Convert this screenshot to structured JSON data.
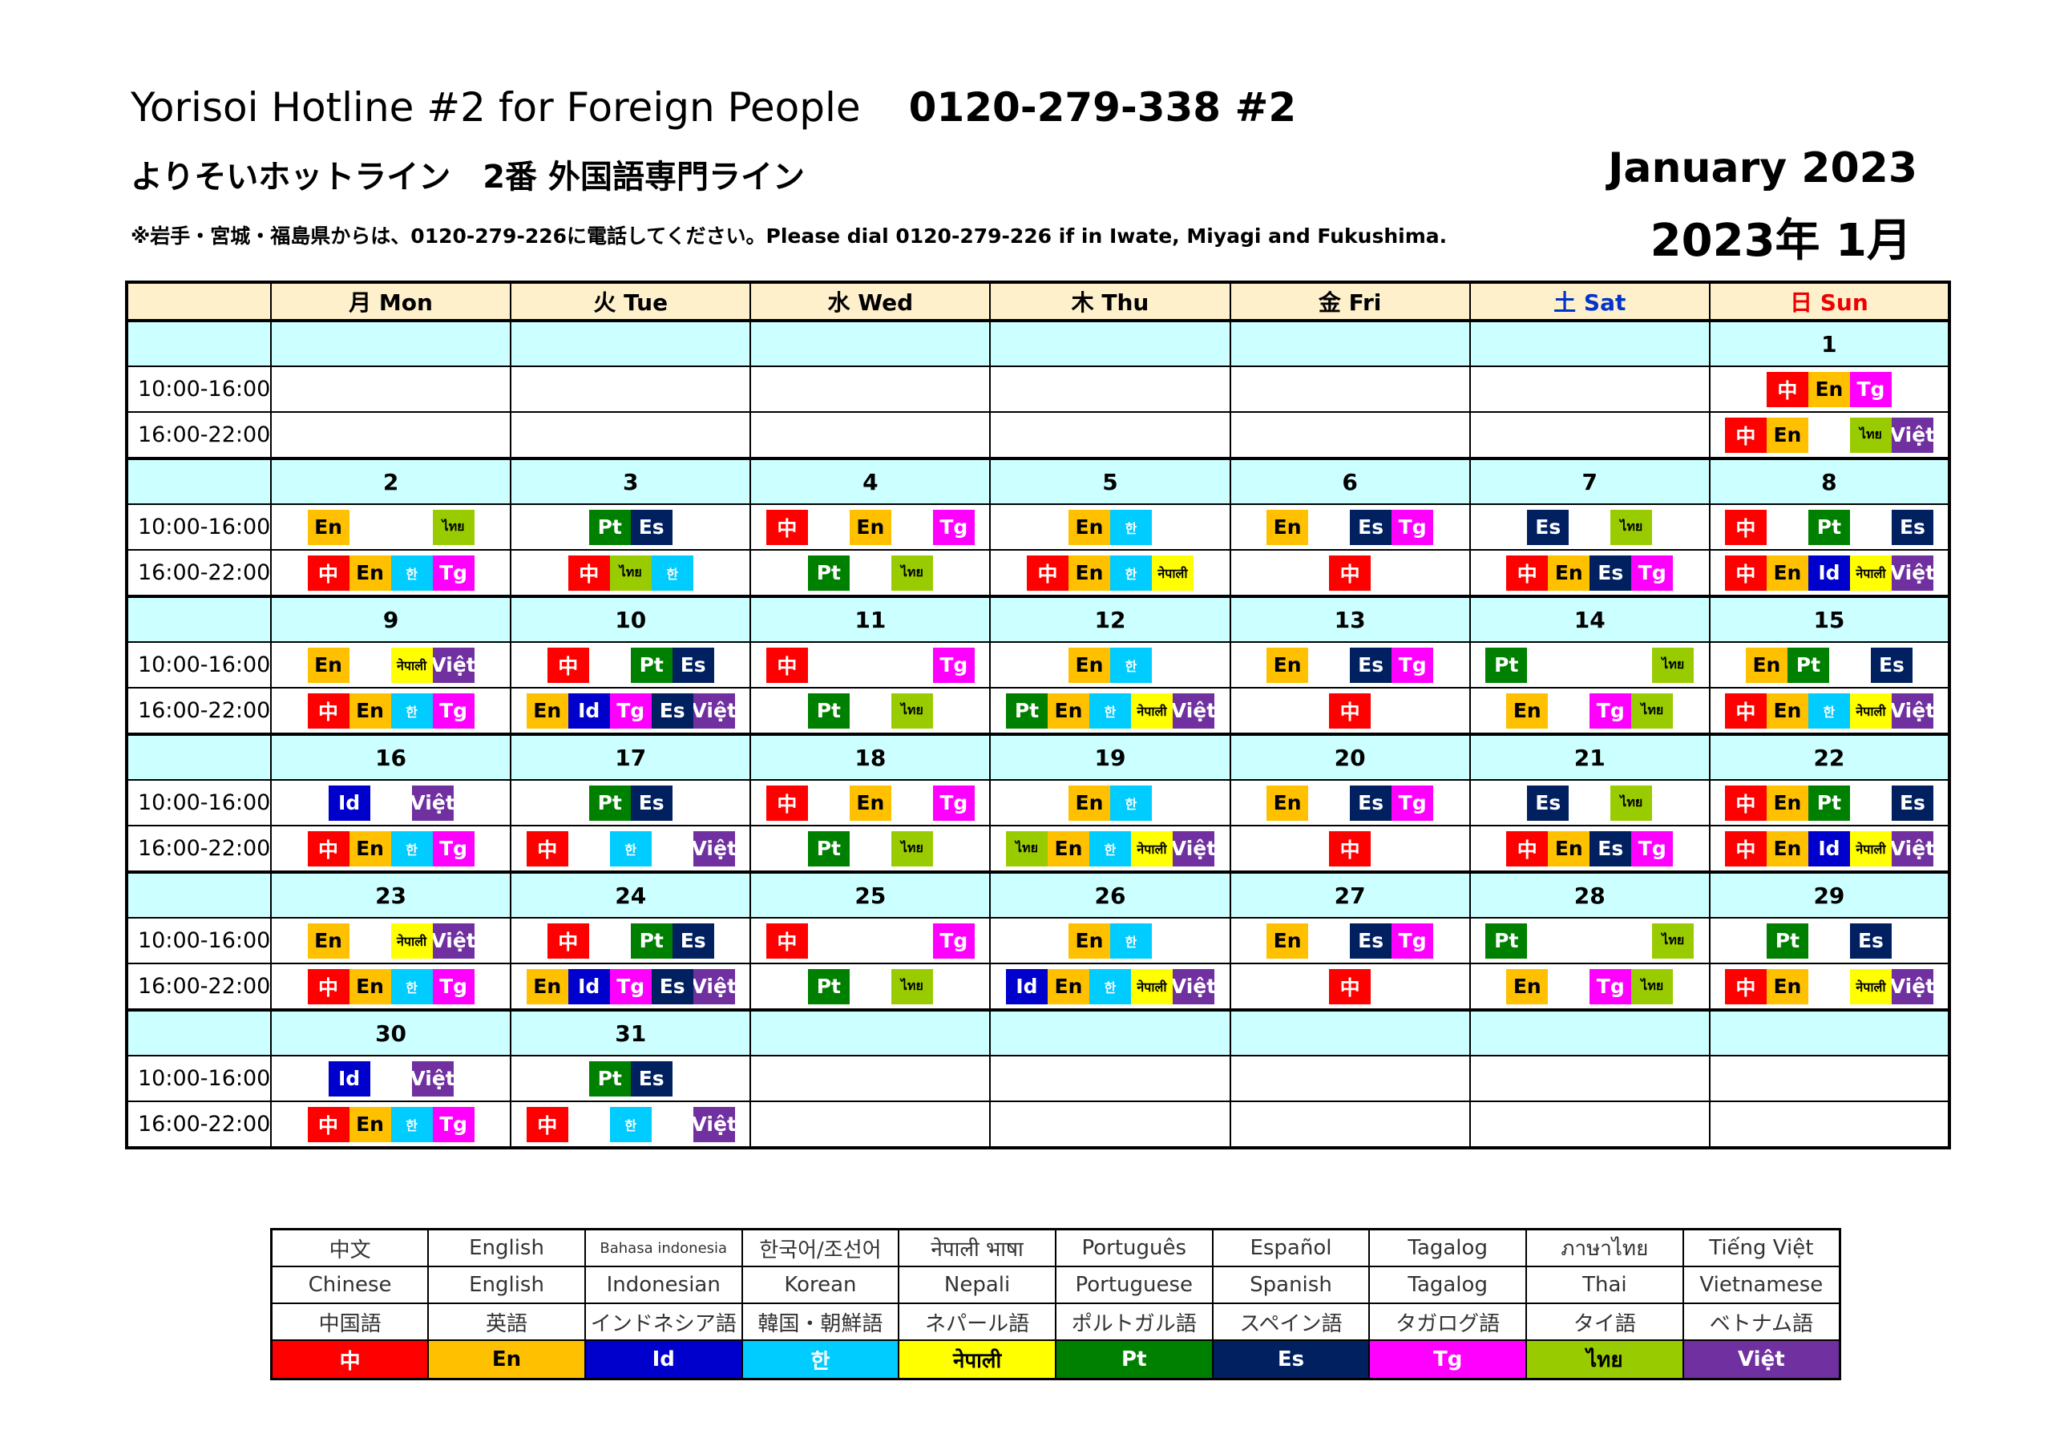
{
  "header": {
    "title_en": "Yorisoi Hotline #2 for Foreign People",
    "phone": "0120-279-338 #2",
    "title_jp": "よりそいホットライン　2番 外国語専門ライン",
    "note": "※岩手・宮城・福島県からは、0120-279-226に電話してください。Please dial 0120-279-226 if in Iwate, Miyagi and Fukushima.",
    "month_en": "January  2023",
    "month_jp": "2023年 1月"
  },
  "days": [
    "月 Mon",
    "火 Tue",
    "水 Wed",
    "木 Thu",
    "金 Fri",
    "土 Sat",
    "日 Sun"
  ],
  "slots": [
    "10:00-16:00",
    "16:00-22:00"
  ],
  "languages": {
    "zh": {
      "code": "中",
      "color": "#ff0000",
      "text_color": "#ffffff"
    },
    "en": {
      "code": "En",
      "color": "#ffc000",
      "text_color": "#000000"
    },
    "id": {
      "code": "Id",
      "color": "#0000cc",
      "text_color": "#ffffff"
    },
    "ko": {
      "code": "한",
      "color": "#00ccff",
      "text_color": "#ffffff"
    },
    "ne": {
      "code": "नेपाली",
      "color": "#ffff00",
      "text_color": "#000000"
    },
    "pt": {
      "code": "Pt",
      "color": "#008000",
      "text_color": "#ffffff"
    },
    "es": {
      "code": "Es",
      "color": "#002060",
      "text_color": "#ffffff"
    },
    "tg": {
      "code": "Tg",
      "color": "#ff00ff",
      "text_color": "#ffffff"
    },
    "th": {
      "code": "ไทย",
      "color": "#99cc00",
      "text_color": "#000000"
    },
    "vi": {
      "code": "Việt",
      "color": "#7030a0",
      "text_color": "#ffffff"
    }
  },
  "weeks": [
    {
      "dates": [
        "",
        "",
        "",
        "",
        "",
        "",
        "1"
      ],
      "am": [
        [],
        [],
        [],
        [],
        [],
        [],
        [
          "zh",
          "en",
          "tg"
        ]
      ],
      "pm": [
        [],
        [],
        [],
        [],
        [],
        [],
        [
          "zh",
          "en",
          "_",
          "th",
          "vi"
        ]
      ]
    },
    {
      "dates": [
        "2",
        "3",
        "4",
        "5",
        "6",
        "7",
        "8"
      ],
      "am": [
        [
          "en",
          "_",
          "_",
          "th"
        ],
        [
          "pt",
          "es"
        ],
        [
          "zh",
          "_",
          "en",
          "_",
          "tg"
        ],
        [
          "en",
          "ko"
        ],
        [
          "en",
          "_",
          "es",
          "tg"
        ],
        [
          "es",
          "_",
          "th"
        ],
        [
          "zh",
          "_",
          "pt",
          "_",
          "es"
        ]
      ],
      "pm": [
        [
          "zh",
          "en",
          "ko",
          "tg"
        ],
        [
          "zh",
          "th",
          "ko"
        ],
        [
          "pt",
          "_",
          "th"
        ],
        [
          "zh",
          "en",
          "ko",
          "ne"
        ],
        [
          "zh"
        ],
        [
          "zh",
          "en",
          "es",
          "tg"
        ],
        [
          "zh",
          "en",
          "id",
          "ne",
          "vi"
        ]
      ]
    },
    {
      "dates": [
        "9",
        "10",
        "11",
        "12",
        "13",
        "14",
        "15"
      ],
      "am": [
        [
          "en",
          "_",
          "ne",
          "vi"
        ],
        [
          "zh",
          "_",
          "pt",
          "es"
        ],
        [
          "zh",
          "_",
          "_",
          "_",
          "tg"
        ],
        [
          "en",
          "ko"
        ],
        [
          "en",
          "_",
          "es",
          "tg"
        ],
        [
          "pt",
          "_",
          "_",
          "_",
          "th"
        ],
        [
          "en",
          "pt",
          "_",
          "es"
        ]
      ],
      "pm": [
        [
          "zh",
          "en",
          "ko",
          "tg"
        ],
        [
          "en",
          "id",
          "tg",
          "es",
          "vi"
        ],
        [
          "pt",
          "_",
          "th"
        ],
        [
          "pt",
          "en",
          "ko",
          "ne",
          "vi"
        ],
        [
          "zh"
        ],
        [
          "en",
          "_",
          "tg",
          "th"
        ],
        [
          "zh",
          "en",
          "ko",
          "ne",
          "vi"
        ]
      ]
    },
    {
      "dates": [
        "16",
        "17",
        "18",
        "19",
        "20",
        "21",
        "22"
      ],
      "am": [
        [
          "id",
          "_",
          "vi"
        ],
        [
          "pt",
          "es"
        ],
        [
          "zh",
          "_",
          "en",
          "_",
          "tg"
        ],
        [
          "en",
          "ko"
        ],
        [
          "en",
          "_",
          "es",
          "tg"
        ],
        [
          "es",
          "_",
          "th"
        ],
        [
          "zh",
          "en",
          "pt",
          "_",
          "es"
        ]
      ],
      "pm": [
        [
          "zh",
          "en",
          "ko",
          "tg"
        ],
        [
          "zh",
          "_",
          "ko",
          "_",
          "vi"
        ],
        [
          "pt",
          "_",
          "th"
        ],
        [
          "th",
          "en",
          "ko",
          "ne",
          "vi"
        ],
        [
          "zh"
        ],
        [
          "zh",
          "en",
          "es",
          "tg"
        ],
        [
          "zh",
          "en",
          "id",
          "ne",
          "vi"
        ]
      ]
    },
    {
      "dates": [
        "23",
        "24",
        "25",
        "26",
        "27",
        "28",
        "29"
      ],
      "am": [
        [
          "en",
          "_",
          "ne",
          "vi"
        ],
        [
          "zh",
          "_",
          "pt",
          "es"
        ],
        [
          "zh",
          "_",
          "_",
          "_",
          "tg"
        ],
        [
          "en",
          "ko"
        ],
        [
          "en",
          "_",
          "es",
          "tg"
        ],
        [
          "pt",
          "_",
          "_",
          "_",
          "th"
        ],
        [
          "pt",
          "_",
          "es"
        ]
      ],
      "pm": [
        [
          "zh",
          "en",
          "ko",
          "tg"
        ],
        [
          "en",
          "id",
          "tg",
          "es",
          "vi"
        ],
        [
          "pt",
          "_",
          "th"
        ],
        [
          "id",
          "en",
          "ko",
          "ne",
          "vi"
        ],
        [
          "zh"
        ],
        [
          "en",
          "_",
          "tg",
          "th"
        ],
        [
          "zh",
          "en",
          "_",
          "ne",
          "vi"
        ]
      ]
    },
    {
      "dates": [
        "30",
        "31",
        "",
        "",
        "",
        "",
        ""
      ],
      "am": [
        [
          "id",
          "_",
          "vi"
        ],
        [
          "pt",
          "es"
        ],
        [],
        [],
        [],
        [],
        []
      ],
      "pm": [
        [
          "zh",
          "en",
          "ko",
          "tg"
        ],
        [
          "zh",
          "_",
          "ko",
          "_",
          "vi"
        ],
        [],
        [],
        [],
        [],
        []
      ]
    }
  ],
  "legend": {
    "native": [
      "中文",
      "English",
      "Bahasa indonesia",
      "한국어/조선어",
      "नेपाली भाषा",
      "Português",
      "Español",
      "Tagalog",
      "ภาษาไทย",
      "Tiếng Việt"
    ],
    "english": [
      "Chinese",
      "English",
      "Indonesian",
      "Korean",
      "Nepali",
      "Portuguese",
      "Spanish",
      "Tagalog",
      "Thai",
      "Vietnamese"
    ],
    "japanese": [
      "中国語",
      "英語",
      "インドネシア語",
      "韓国・朝鮮語",
      "ネパール語",
      "ポルトガル語",
      "スペイン語",
      "タガログ語",
      "タイ語",
      "ベトナム語"
    ],
    "codes": [
      {
        "code": "中",
        "color": "#ff0000",
        "text_color": "#ffffff"
      },
      {
        "code": "En",
        "color": "#ffc000",
        "text_color": "#000000"
      },
      {
        "code": "Id",
        "color": "#0000cc",
        "text_color": "#ffffff"
      },
      {
        "code": "한",
        "color": "#00ccff",
        "text_color": "#ffffff"
      },
      {
        "code": "नेपाली",
        "color": "#ffff00",
        "text_color": "#000000"
      },
      {
        "code": "Pt",
        "color": "#008000",
        "text_color": "#ffffff"
      },
      {
        "code": "Es",
        "color": "#002060",
        "text_color": "#ffffff"
      },
      {
        "code": "Tg",
        "color": "#ff00ff",
        "text_color": "#ffffff"
      },
      {
        "code": "ไทย",
        "color": "#99cc00",
        "text_color": "#000000"
      },
      {
        "code": "Việt",
        "color": "#7030a0",
        "text_color": "#ffffff"
      }
    ]
  }
}
